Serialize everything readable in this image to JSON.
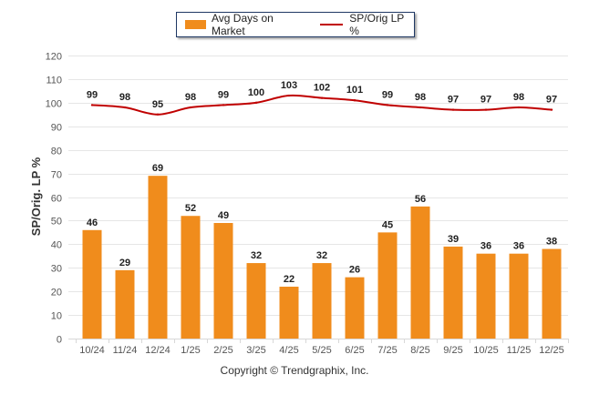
{
  "chart_data": {
    "type": "bar+line",
    "title": "",
    "xlabel": "",
    "ylabel": "SP/Orig. LP %",
    "ylim": [
      0,
      120
    ],
    "yticks": [
      0,
      10,
      20,
      30,
      40,
      50,
      60,
      70,
      80,
      90,
      100,
      110,
      120
    ],
    "grid": true,
    "legend_position": "top-center",
    "categories": [
      "10/24",
      "11/24",
      "12/24",
      "1/25",
      "2/25",
      "3/25",
      "4/25",
      "5/25",
      "6/25",
      "7/25",
      "8/25",
      "9/25",
      "10/25",
      "11/25",
      "12/25"
    ],
    "series": [
      {
        "name": "Avg Days on Market",
        "type": "bar",
        "color": "#f08c1c",
        "values": [
          46,
          29,
          69,
          52,
          49,
          32,
          22,
          32,
          26,
          45,
          56,
          39,
          36,
          36,
          38
        ]
      },
      {
        "name": "SP/Orig LP %",
        "type": "line",
        "color": "#c00000",
        "values": [
          99,
          98,
          95,
          98,
          99,
          100,
          103,
          102,
          101,
          99,
          98,
          97,
          97,
          98,
          97
        ]
      }
    ]
  },
  "legend": {
    "bar_label": "Avg Days on Market",
    "line_label": "SP/Orig LP %"
  },
  "footer": {
    "copyright": "Copyright © Trendgraphix, Inc."
  }
}
